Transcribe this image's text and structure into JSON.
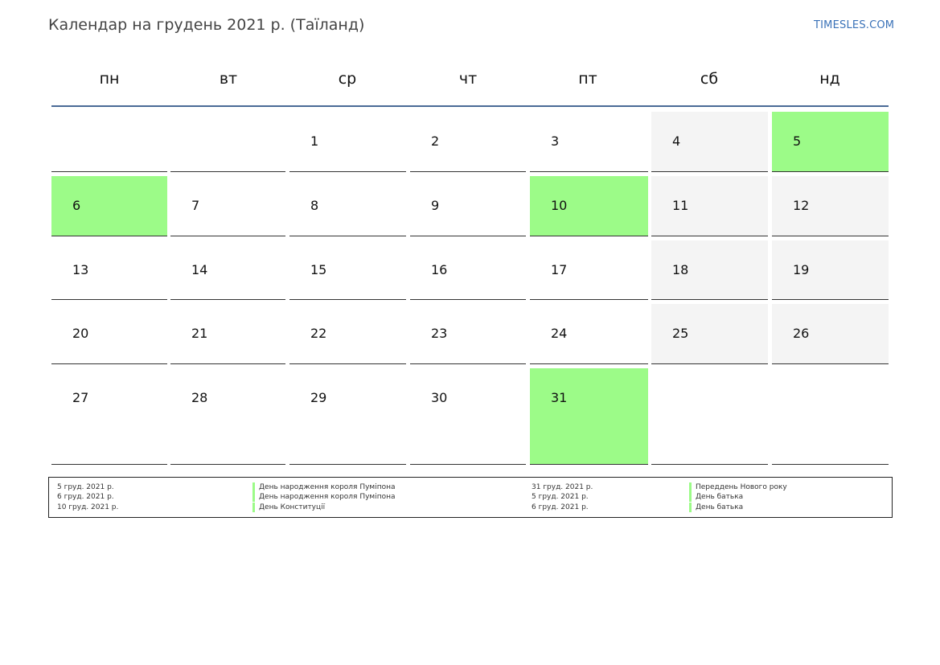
{
  "header": {
    "title": "Календар на грудень 2021 р. (Таїланд)",
    "site": "TIMESLES.COM"
  },
  "weekdays": [
    "пн",
    "вт",
    "ср",
    "чт",
    "пт",
    "сб",
    "нд"
  ],
  "colors": {
    "holiday": "#9cfb88",
    "weekend": "#f4f4f4",
    "header_rule": "#4a6a96",
    "site_link": "#3a72b8"
  },
  "weeks": [
    [
      {
        "day": ""
      },
      {
        "day": ""
      },
      {
        "day": "1"
      },
      {
        "day": "2"
      },
      {
        "day": "3"
      },
      {
        "day": "4",
        "weekend": true
      },
      {
        "day": "5",
        "weekend": true,
        "holiday": true
      }
    ],
    [
      {
        "day": "6",
        "holiday": true
      },
      {
        "day": "7"
      },
      {
        "day": "8"
      },
      {
        "day": "9"
      },
      {
        "day": "10",
        "holiday": true
      },
      {
        "day": "11",
        "weekend": true
      },
      {
        "day": "12",
        "weekend": true
      }
    ],
    [
      {
        "day": "13"
      },
      {
        "day": "14"
      },
      {
        "day": "15"
      },
      {
        "day": "16"
      },
      {
        "day": "17"
      },
      {
        "day": "18",
        "weekend": true
      },
      {
        "day": "19",
        "weekend": true
      }
    ],
    [
      {
        "day": "20"
      },
      {
        "day": "21"
      },
      {
        "day": "22"
      },
      {
        "day": "23"
      },
      {
        "day": "24"
      },
      {
        "day": "25",
        "weekend": true
      },
      {
        "day": "26",
        "weekend": true
      }
    ],
    [
      {
        "day": "27"
      },
      {
        "day": "28"
      },
      {
        "day": "29"
      },
      {
        "day": "30"
      },
      {
        "day": "31",
        "holiday": true
      },
      {
        "day": ""
      },
      {
        "day": ""
      }
    ]
  ],
  "legend": {
    "left": [
      {
        "date": "5 груд. 2021 р.",
        "name": "День народження короля Пуміпона"
      },
      {
        "date": "6 груд. 2021 р.",
        "name": "День народження короля Пуміпона"
      },
      {
        "date": "10 груд. 2021 р.",
        "name": "День Конституції"
      }
    ],
    "right": [
      {
        "date": "31 груд. 2021 р.",
        "name": "Переддень Нового року"
      },
      {
        "date": "5 груд. 2021 р.",
        "name": "День батька"
      },
      {
        "date": "6 груд. 2021 р.",
        "name": "День батька"
      }
    ]
  }
}
